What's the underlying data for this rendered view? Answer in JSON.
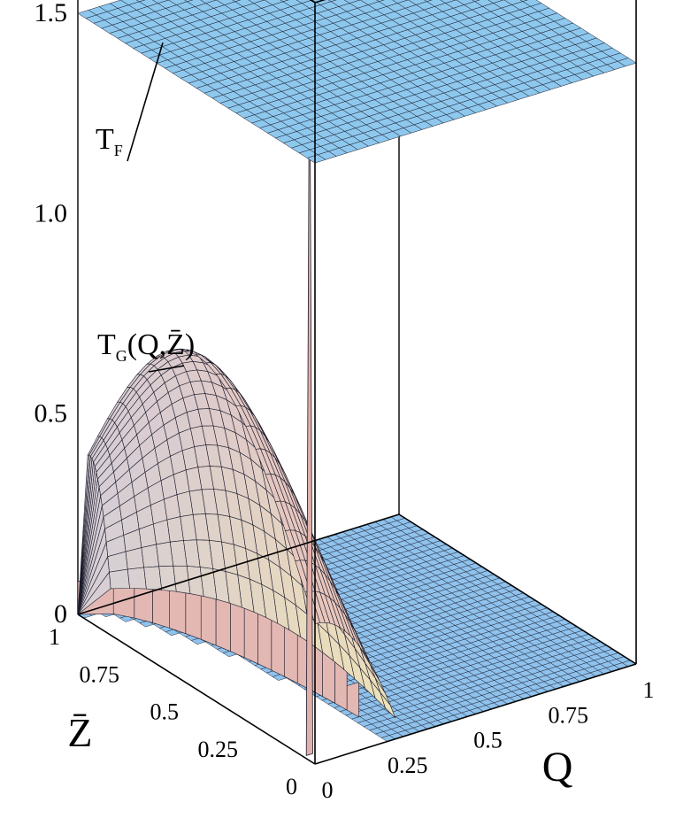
{
  "chart_data": {
    "type": "surface3d",
    "xlabel": "Q",
    "ylabel": "Z̄",
    "zlabel": "",
    "xlim": [
      0,
      1
    ],
    "ylim": [
      0,
      1
    ],
    "zlim": [
      0,
      1.9
    ],
    "x_ticks": [
      "0",
      "0.25",
      "0.5",
      "0.75",
      "1"
    ],
    "y_ticks": [
      "0",
      "0.25",
      "0.5",
      "0.75",
      "1"
    ],
    "z_ticks": [
      "0",
      "0.5",
      "1.0",
      "1.5"
    ],
    "grid": false,
    "box": true,
    "surfaces": [
      {
        "name": "T_F",
        "label_main": "T",
        "label_sub": "F",
        "label_rest": "",
        "z_constant": 1.5,
        "color": "#8ec8ee"
      },
      {
        "name": "T_G(Q,Z̄)",
        "label_main": "T",
        "label_sub": "G",
        "label_rest": "(Q,Z̄)",
        "z_peak": 0.9,
        "z_outside": 0,
        "color": "#e8b8b0"
      }
    ],
    "spike": {
      "q": 0.02,
      "z_bar": 0.05,
      "z_max": 1.9
    }
  },
  "colors": {
    "box": "#000000",
    "mesh": "#1a1a2a",
    "plane": "#8ec8ee",
    "floor": "#8fc2ec",
    "dome_base": "#e8c6bc",
    "dome_warm": "#eef0b8",
    "wall": "#e0b0aa"
  }
}
